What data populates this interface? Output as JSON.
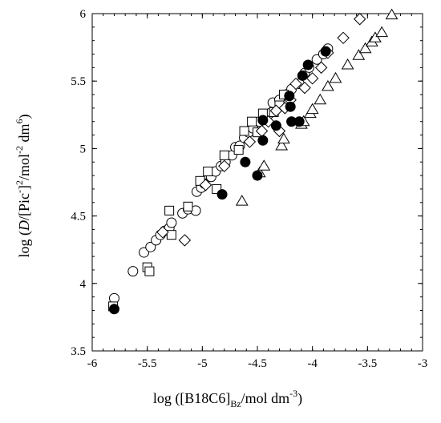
{
  "chart_data": {
    "type": "scatter",
    "title": "",
    "xlabel": {
      "main": "log ([B18C6]",
      "sub": "Bz",
      "unit": "/mol dm",
      "sup": "-3",
      "close": ")"
    },
    "ylabel": {
      "prefix": "log (",
      "italic": "D",
      "mid1": "/[Pic",
      "sup1": "-",
      "mid2": "]",
      "sup2": "2",
      "mid3": "/mol",
      "sup3": "-2",
      "mid4": " dm",
      "sup4": "6",
      "close": ")"
    },
    "xlim": [
      -6,
      -3
    ],
    "ylim": [
      3.5,
      6
    ],
    "xticks": [
      -6,
      -5.5,
      -5,
      -4.5,
      -4,
      -3.5,
      -3
    ],
    "xtick_labels": [
      "-6",
      "-5.5",
      "-5",
      "-4.5",
      "-4",
      "-3.5",
      "-3"
    ],
    "yticks": [
      3.5,
      4,
      4.5,
      5,
      5.5,
      6
    ],
    "ytick_labels": [
      "3.5",
      "4",
      "4.5",
      "5",
      "5.5",
      "6"
    ],
    "grid": false,
    "legend": "none",
    "series": [
      {
        "marker": "open-circle",
        "points": [
          [
            -5.8,
            3.89
          ],
          [
            -5.63,
            4.09
          ],
          [
            -5.53,
            4.23
          ],
          [
            -5.47,
            4.27
          ],
          [
            -5.42,
            4.32
          ],
          [
            -5.38,
            4.36
          ],
          [
            -5.34,
            4.39
          ],
          [
            -5.3,
            4.41
          ],
          [
            -5.28,
            4.45
          ],
          [
            -5.18,
            4.52
          ],
          [
            -5.13,
            4.55
          ],
          [
            -5.06,
            4.54
          ],
          [
            -5.05,
            4.68
          ],
          [
            -5.01,
            4.71
          ],
          [
            -4.98,
            4.74
          ],
          [
            -4.92,
            4.79
          ],
          [
            -4.88,
            4.83
          ],
          [
            -4.83,
            4.87
          ],
          [
            -4.79,
            4.9
          ],
          [
            -4.73,
            4.95
          ],
          [
            -4.7,
            5.01
          ],
          [
            -4.66,
            5.02
          ],
          [
            -4.62,
            5.08
          ],
          [
            -4.58,
            5.12
          ],
          [
            -4.54,
            5.15
          ],
          [
            -4.48,
            5.2
          ],
          [
            -4.44,
            5.22
          ],
          [
            -4.39,
            5.26
          ],
          [
            -4.36,
            5.34
          ],
          [
            -4.3,
            5.36
          ],
          [
            -4.24,
            5.4
          ],
          [
            -4.19,
            5.44
          ],
          [
            -4.12,
            5.48
          ],
          [
            -4.07,
            5.56
          ],
          [
            -4.03,
            5.6
          ],
          [
            -3.96,
            5.66
          ],
          [
            -3.9,
            5.7
          ],
          [
            -3.86,
            5.74
          ]
        ]
      },
      {
        "marker": "open-square",
        "points": [
          [
            -5.81,
            3.83
          ],
          [
            -5.5,
            4.12
          ],
          [
            -5.48,
            4.09
          ],
          [
            -5.3,
            4.54
          ],
          [
            -5.28,
            4.36
          ],
          [
            -5.13,
            4.57
          ],
          [
            -5.02,
            4.76
          ],
          [
            -4.95,
            4.83
          ],
          [
            -4.87,
            4.7
          ],
          [
            -4.8,
            4.95
          ],
          [
            -4.67,
            4.99
          ],
          [
            -4.62,
            5.13
          ],
          [
            -4.55,
            5.2
          ],
          [
            -4.5,
            5.12
          ],
          [
            -4.45,
            5.26
          ],
          [
            -4.35,
            5.27
          ],
          [
            -4.3,
            5.32
          ],
          [
            -4.26,
            5.4
          ]
        ]
      },
      {
        "marker": "open-diamond",
        "points": [
          [
            -5.36,
            4.38
          ],
          [
            -5.16,
            4.32
          ],
          [
            -4.97,
            4.73
          ],
          [
            -4.8,
            4.87
          ],
          [
            -4.57,
            5.05
          ],
          [
            -4.46,
            5.13
          ],
          [
            -4.4,
            5.2
          ],
          [
            -4.33,
            5.28
          ],
          [
            -4.3,
            5.13
          ],
          [
            -4.25,
            5.3
          ],
          [
            -4.2,
            5.36
          ],
          [
            -4.15,
            5.48
          ],
          [
            -4.07,
            5.45
          ],
          [
            -4.0,
            5.52
          ],
          [
            -3.92,
            5.6
          ],
          [
            -3.86,
            5.71
          ],
          [
            -3.72,
            5.82
          ],
          [
            -3.57,
            5.96
          ]
        ]
      },
      {
        "marker": "open-triangle",
        "points": [
          [
            -4.64,
            4.61
          ],
          [
            -4.48,
            4.82
          ],
          [
            -4.44,
            4.87
          ],
          [
            -4.28,
            5.02
          ],
          [
            -4.26,
            5.07
          ],
          [
            -4.1,
            5.18
          ],
          [
            -4.08,
            5.2
          ],
          [
            -4.02,
            5.26
          ],
          [
            -4.0,
            5.29
          ],
          [
            -3.93,
            5.36
          ],
          [
            -3.86,
            5.46
          ],
          [
            -3.79,
            5.52
          ],
          [
            -3.68,
            5.62
          ],
          [
            -3.58,
            5.69
          ],
          [
            -3.52,
            5.74
          ],
          [
            -3.46,
            5.79
          ],
          [
            -3.43,
            5.82
          ],
          [
            -3.37,
            5.86
          ],
          [
            -3.28,
            5.99
          ]
        ]
      },
      {
        "marker": "filled-circle",
        "points": [
          [
            -5.8,
            3.81
          ],
          [
            -4.82,
            4.66
          ],
          [
            -4.61,
            4.9
          ],
          [
            -4.5,
            4.8
          ],
          [
            -4.45,
            5.06
          ],
          [
            -4.45,
            5.21
          ],
          [
            -4.33,
            5.17
          ],
          [
            -4.2,
            5.31
          ],
          [
            -4.21,
            5.39
          ],
          [
            -4.19,
            5.2
          ],
          [
            -4.12,
            5.2
          ],
          [
            -4.09,
            5.54
          ],
          [
            -4.04,
            5.62
          ],
          [
            -3.88,
            5.72
          ]
        ]
      }
    ]
  }
}
